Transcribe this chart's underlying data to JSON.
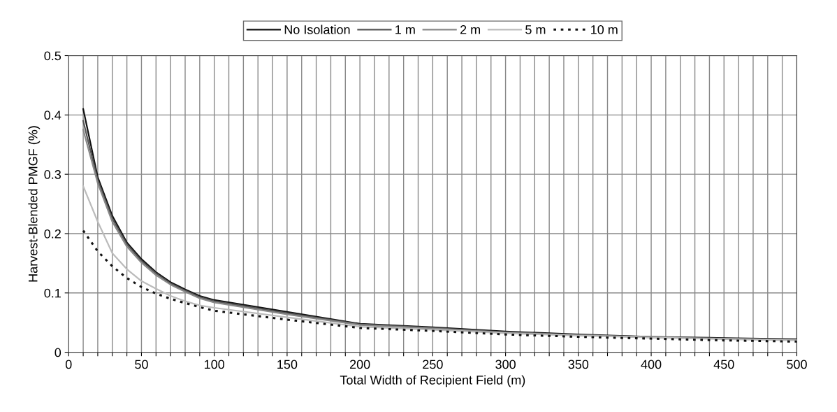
{
  "chart_data": {
    "type": "line",
    "xlabel": "Total Width of Recipient Field (m)",
    "ylabel": "Harvest-Blended PMGF (%)",
    "x": [
      10,
      20,
      30,
      40,
      50,
      60,
      70,
      80,
      90,
      100,
      150,
      200,
      250,
      300,
      350,
      400,
      450,
      500
    ],
    "series": [
      {
        "name": "No Isolation",
        "color": "#111111",
        "values": [
          0.41,
          0.295,
          0.23,
          0.185,
          0.157,
          0.135,
          0.118,
          0.106,
          0.095,
          0.088,
          0.068,
          0.048,
          0.042,
          0.035,
          0.03,
          0.026,
          0.024,
          0.022
        ]
      },
      {
        "name": "1 m",
        "color": "#555555",
        "values": [
          0.39,
          0.29,
          0.225,
          0.182,
          0.154,
          0.133,
          0.116,
          0.104,
          0.093,
          0.086,
          0.066,
          0.047,
          0.041,
          0.034,
          0.029,
          0.026,
          0.023,
          0.021
        ]
      },
      {
        "name": "2 m",
        "color": "#888888",
        "values": [
          0.375,
          0.285,
          0.22,
          0.178,
          0.151,
          0.13,
          0.114,
          0.102,
          0.091,
          0.084,
          0.064,
          0.046,
          0.04,
          0.033,
          0.029,
          0.025,
          0.023,
          0.021
        ]
      },
      {
        "name": "5 m",
        "color": "#bbbbbb",
        "values": [
          0.28,
          0.22,
          0.167,
          0.14,
          0.12,
          0.107,
          0.095,
          0.086,
          0.079,
          0.075,
          0.059,
          0.043,
          0.038,
          0.032,
          0.028,
          0.025,
          0.022,
          0.02
        ]
      },
      {
        "name": "10 m",
        "color": "#111111",
        "line_style": "dotted",
        "values": [
          0.205,
          0.17,
          0.145,
          0.125,
          0.11,
          0.099,
          0.09,
          0.083,
          0.076,
          0.07,
          0.055,
          0.041,
          0.036,
          0.03,
          0.026,
          0.023,
          0.02,
          0.018
        ]
      }
    ],
    "xlim": [
      0,
      500
    ],
    "xticks": [
      0,
      {
        "value": 10,
        "label": null
      },
      {
        "value": 20,
        "label": null
      },
      {
        "value": 30,
        "label": null
      },
      {
        "value": 40,
        "label": null
      },
      50,
      {
        "value": 60,
        "label": null
      },
      {
        "value": 70,
        "label": null
      },
      {
        "value": 80,
        "label": null
      },
      {
        "value": 90,
        "label": null
      },
      100,
      {
        "value": 110,
        "label": null
      },
      {
        "value": 120,
        "label": null
      },
      {
        "value": 130,
        "label": null
      },
      {
        "value": 140,
        "label": null
      },
      150,
      {
        "value": 160,
        "label": null
      },
      {
        "value": 170,
        "label": null
      },
      {
        "value": 180,
        "label": null
      },
      {
        "value": 190,
        "label": null
      },
      200,
      {
        "value": 210,
        "label": null
      },
      {
        "value": 220,
        "label": null
      },
      {
        "value": 230,
        "label": null
      },
      {
        "value": 240,
        "label": null
      },
      250,
      {
        "value": 260,
        "label": null
      },
      {
        "value": 270,
        "label": null
      },
      {
        "value": 280,
        "label": null
      },
      {
        "value": 290,
        "label": null
      },
      300,
      {
        "value": 310,
        "label": null
      },
      {
        "value": 320,
        "label": null
      },
      {
        "value": 330,
        "label": null
      },
      {
        "value": 340,
        "label": null
      },
      350,
      {
        "value": 360,
        "label": null
      },
      {
        "value": 370,
        "label": null
      },
      {
        "value": 380,
        "label": null
      },
      {
        "value": 390,
        "label": null
      },
      400,
      {
        "value": 410,
        "label": null
      },
      {
        "value": 420,
        "label": null
      },
      {
        "value": 430,
        "label": null
      },
      {
        "value": 440,
        "label": null
      },
      450,
      {
        "value": 460,
        "label": null
      },
      {
        "value": 470,
        "label": null
      },
      {
        "value": 480,
        "label": null
      },
      {
        "value": 490,
        "label": null
      },
      500
    ],
    "ylim": [
      0,
      0.5
    ],
    "yticks": [
      0,
      0.1,
      0.2,
      0.3,
      0.4,
      0.5
    ],
    "grid": true,
    "legend": "top",
    "marker": "none",
    "line_style": "solid"
  }
}
